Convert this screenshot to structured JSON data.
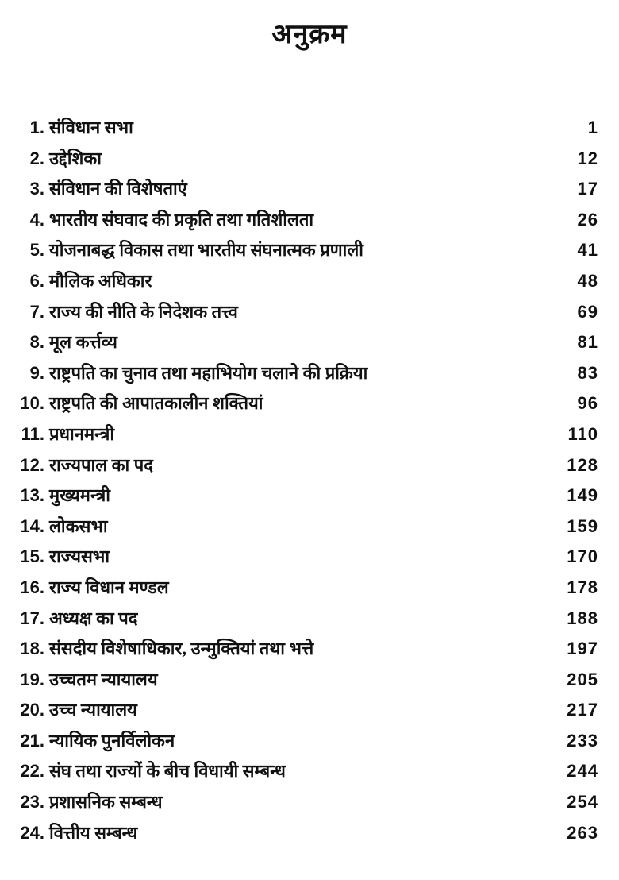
{
  "title": "अनुक्रम",
  "entries": [
    {
      "num": "1.",
      "label": "संविधान सभा",
      "page": "1"
    },
    {
      "num": "2.",
      "label": "उद्देशिका",
      "page": "12"
    },
    {
      "num": "3.",
      "label": "संविधान की विशेषताएं",
      "page": "17"
    },
    {
      "num": "4.",
      "label": "भारतीय संघवाद की प्रकृति तथा गतिशीलता",
      "page": "26"
    },
    {
      "num": "5.",
      "label": "योजनाबद्ध विकास तथा भारतीय संघनात्मक प्रणाली",
      "page": "41"
    },
    {
      "num": "6.",
      "label": "मौलिक अधिकार",
      "page": "48"
    },
    {
      "num": "7.",
      "label": "राज्य की नीति के निदेशक तत्त्व",
      "page": "69"
    },
    {
      "num": "8.",
      "label": "मूल कर्त्तव्य",
      "page": "81"
    },
    {
      "num": "9.",
      "label": "राष्ट्रपति का चुनाव तथा महाभियोग चलाने की प्रक्रिया",
      "page": "83"
    },
    {
      "num": "10.",
      "label": "राष्ट्रपति की आपातकालीन शक्तियां",
      "page": "96"
    },
    {
      "num": "11.",
      "label": "प्रधानमन्त्री",
      "page": "110"
    },
    {
      "num": "12.",
      "label": "राज्यपाल का पद",
      "page": "128"
    },
    {
      "num": "13.",
      "label": "मुख्यमन्त्री",
      "page": "149"
    },
    {
      "num": "14.",
      "label": "लोकसभा",
      "page": "159"
    },
    {
      "num": "15.",
      "label": "राज्यसभा",
      "page": "170"
    },
    {
      "num": "16.",
      "label": "राज्य विधान मण्डल",
      "page": "178"
    },
    {
      "num": "17.",
      "label": "अध्यक्ष का पद",
      "page": "188"
    },
    {
      "num": "18.",
      "label": "संसदीय विशेषाधिकार, उन्मुक्तियां तथा भत्ते",
      "page": "197"
    },
    {
      "num": "19.",
      "label": "उच्चतम न्यायालय",
      "page": "205"
    },
    {
      "num": "20.",
      "label": "उच्च न्यायालय",
      "page": "217"
    },
    {
      "num": "21.",
      "label": "न्यायिक पुनर्विलोकन",
      "page": "233"
    },
    {
      "num": "22.",
      "label": "संघ तथा राज्यों के बीच विधायी सम्बन्ध",
      "page": "244"
    },
    {
      "num": "23.",
      "label": "प्रशासनिक सम्बन्ध",
      "page": "254"
    },
    {
      "num": "24.",
      "label": "वित्तीय सम्बन्ध",
      "page": "263"
    }
  ]
}
